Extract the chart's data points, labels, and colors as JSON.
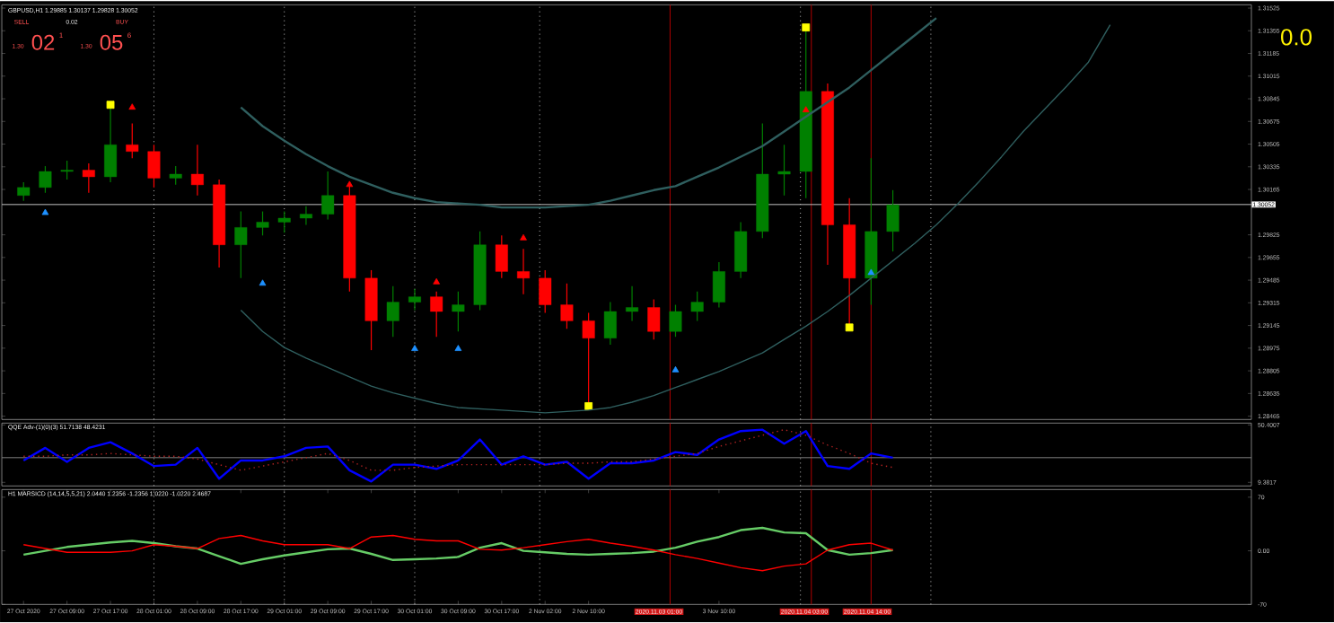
{
  "chart_data": [
    {
      "type": "candlestick",
      "title": "GBPUSD,H1 1.29885 1.30137 1.29828 1.30052",
      "categories": [
        null,
        null,
        null,
        null,
        null,
        null,
        null,
        null,
        null,
        null,
        null,
        null,
        null,
        null,
        null,
        null,
        null,
        null,
        null,
        null,
        null,
        null,
        null,
        null,
        null,
        null,
        null,
        null,
        null,
        null,
        null,
        null,
        null,
        null,
        null,
        null,
        null,
        null,
        null,
        null,
        null,
        null,
        null,
        null,
        null,
        null,
        null,
        null,
        null,
        null,
        null,
        null,
        null,
        null,
        null,
        null,
        null
      ],
      "ohlc": [
        [
          1.3012,
          1.3022,
          1.3008,
          1.3018
        ],
        [
          1.3018,
          1.3034,
          1.3014,
          1.303
        ],
        [
          1.303,
          1.3038,
          1.3024,
          1.3031
        ],
        [
          1.3031,
          1.3036,
          1.3014,
          1.3026
        ],
        [
          1.3026,
          1.308,
          1.3022,
          1.305
        ],
        [
          1.305,
          1.3066,
          1.304,
          1.3045
        ],
        [
          1.3045,
          1.305,
          1.3018,
          1.3025
        ],
        [
          1.3025,
          1.3034,
          1.302,
          1.3028
        ],
        [
          1.3028,
          1.305,
          1.3012,
          1.302
        ],
        [
          1.302,
          1.3024,
          1.2958,
          1.2975
        ],
        [
          1.2975,
          1.3,
          1.295,
          1.2988
        ],
        [
          1.2988,
          1.3,
          1.2982,
          1.2992
        ],
        [
          1.2992,
          1.3,
          1.2984,
          1.2995
        ],
        [
          1.2995,
          1.3004,
          1.299,
          1.2998
        ],
        [
          1.2998,
          1.303,
          1.2994,
          1.3012
        ],
        [
          1.3012,
          1.302,
          1.294,
          1.295
        ],
        [
          1.295,
          1.2956,
          1.2896,
          1.2918
        ],
        [
          1.2918,
          1.2944,
          1.2906,
          1.2932
        ],
        [
          1.2932,
          1.2942,
          1.2926,
          1.2936
        ],
        [
          1.2936,
          1.294,
          1.2906,
          1.2925
        ],
        [
          1.2925,
          1.294,
          1.291,
          1.293
        ],
        [
          1.293,
          1.2985,
          1.2926,
          1.2975
        ],
        [
          1.2975,
          1.2982,
          1.295,
          1.2955
        ],
        [
          1.2955,
          1.2972,
          1.2938,
          1.295
        ],
        [
          1.295,
          1.2956,
          1.2924,
          1.293
        ],
        [
          1.293,
          1.2946,
          1.2912,
          1.2918
        ],
        [
          1.2918,
          1.2924,
          1.2854,
          1.2905
        ],
        [
          1.2905,
          1.2932,
          1.29,
          1.2925
        ],
        [
          1.2925,
          1.2944,
          1.2918,
          1.2928
        ],
        [
          1.2928,
          1.2934,
          1.2904,
          1.291
        ],
        [
          1.291,
          1.293,
          1.2906,
          1.2925
        ],
        [
          1.2925,
          1.294,
          1.2918,
          1.2932
        ],
        [
          1.2932,
          1.2962,
          1.2928,
          1.2955
        ],
        [
          1.2955,
          1.2992,
          1.295,
          1.2985
        ],
        [
          1.2985,
          1.3066,
          1.298,
          1.3028
        ],
        [
          1.3028,
          1.305,
          1.3012,
          1.303
        ],
        [
          1.303,
          1.3138,
          1.301,
          1.309
        ],
        [
          1.309,
          1.3096,
          1.296,
          1.299
        ],
        [
          1.299,
          1.301,
          1.2913,
          1.295
        ],
        [
          1.295,
          1.304,
          1.293,
          1.2985
        ],
        [
          1.2985,
          1.3016,
          1.297,
          1.3005
        ],
        null,
        null,
        null,
        null,
        null,
        null,
        null,
        null,
        null,
        null,
        null,
        null,
        null,
        null,
        null,
        null
      ],
      "colors": [
        "#008000",
        "#008000",
        "#008000",
        "#ff0000",
        "#008000",
        "#ff0000",
        "#ff0000",
        "#008000",
        "#ff0000",
        "#ff0000",
        "#008000",
        "#008000",
        "#008000",
        "#008000",
        "#008000",
        "#ff0000",
        "#ff0000",
        "#008000",
        "#008000",
        "#ff0000",
        "#008000",
        "#008000",
        "#ff0000",
        "#ff0000",
        "#ff0000",
        "#ff0000",
        "#ff0000",
        "#008000",
        "#008000",
        "#ff0000",
        "#008000",
        "#008000",
        "#008000",
        "#008000",
        "#008000",
        "#008000",
        "#008000",
        "#ff0000",
        "#ff0000",
        "#008000",
        "#008000",
        null,
        null,
        null,
        null,
        null,
        null,
        null,
        null,
        null,
        null,
        null,
        null,
        null,
        null,
        null,
        null
      ],
      "series": [
        {
          "type": "scatter",
          "marker": "triangle",
          "color": "#1e90ff",
          "values": [
            null,
            1.2999,
            null,
            null,
            null,
            null,
            null,
            null,
            null,
            null,
            null,
            1.2946,
            null,
            null,
            null,
            null,
            null,
            null,
            1.2897,
            null,
            1.2897,
            null,
            null,
            null,
            null,
            null,
            null,
            null,
            null,
            null,
            1.2881,
            null,
            null,
            null,
            null,
            null,
            null,
            null,
            null,
            1.2954,
            null,
            null,
            null,
            null,
            null,
            null,
            null,
            null,
            null,
            null,
            null,
            null,
            null,
            null,
            null,
            null,
            null
          ]
        },
        {
          "type": "scatter",
          "marker": "triangle",
          "color": "#ff0000",
          "values": [
            null,
            null,
            null,
            null,
            null,
            1.3078,
            null,
            null,
            null,
            null,
            null,
            null,
            null,
            null,
            null,
            1.302,
            null,
            null,
            null,
            1.2947,
            null,
            null,
            null,
            1.298,
            null,
            null,
            null,
            null,
            null,
            null,
            null,
            null,
            null,
            null,
            null,
            null,
            1.3076,
            null,
            null,
            null,
            null,
            null,
            null,
            null,
            null,
            null,
            null,
            null,
            null,
            null,
            null,
            null,
            null,
            null,
            null,
            null,
            null
          ]
        },
        {
          "type": "scatter",
          "marker": "square",
          "color": "#ffff00",
          "values": [
            null,
            null,
            null,
            null,
            1.308,
            null,
            null,
            null,
            null,
            null,
            null,
            null,
            null,
            null,
            null,
            null,
            null,
            null,
            null,
            null,
            null,
            null,
            null,
            null,
            null,
            null,
            1.2854,
            null,
            null,
            null,
            null,
            null,
            null,
            null,
            null,
            null,
            1.3138,
            null,
            1.2913,
            null,
            null,
            null,
            null,
            null,
            null,
            null,
            null,
            null,
            null,
            null,
            null,
            null,
            null,
            null,
            null,
            null,
            null
          ]
        },
        {
          "type": "line",
          "color": "#2f5f5f",
          "values": [
            null,
            null,
            null,
            null,
            null,
            null,
            null,
            null,
            null,
            null,
            1.3078,
            1.3064,
            1.3053,
            1.3043,
            1.3034,
            1.3026,
            1.302,
            1.3014,
            1.301,
            1.3007,
            1.3006,
            1.3005,
            1.3003,
            1.3003,
            1.3003,
            1.3004,
            1.3005,
            1.3008,
            1.3012,
            1.3016,
            1.3019,
            1.3026,
            1.3033,
            1.3041,
            1.3049,
            1.306,
            1.3071,
            1.3082,
            1.3093,
            1.3106,
            1.3119,
            1.3132,
            1.3145,
            null,
            null,
            null,
            null,
            null,
            null,
            null,
            null,
            null,
            null,
            null,
            null,
            null,
            null
          ]
        },
        {
          "type": "line",
          "color": "#2f5f5f",
          "values": [
            null,
            null,
            null,
            null,
            null,
            null,
            null,
            null,
            null,
            null,
            1.2926,
            1.291,
            1.2898,
            1.289,
            1.2883,
            1.2876,
            1.2869,
            1.2864,
            1.286,
            1.2856,
            1.2853,
            1.2852,
            1.2851,
            1.285,
            1.2849,
            1.285,
            1.2851,
            1.2853,
            1.2857,
            1.2862,
            1.2868,
            1.2874,
            1.288,
            1.2887,
            1.2894,
            1.2904,
            1.2914,
            1.2925,
            1.2937,
            1.295,
            1.2963,
            1.2976,
            1.299,
            1.3006,
            1.3023,
            1.3041,
            1.306,
            1.3077,
            1.3094,
            1.3112,
            1.314,
            null,
            null,
            null,
            null,
            null,
            null
          ]
        }
      ],
      "ylim": [
        1.2844,
        1.3155
      ],
      "grid": "x",
      "yticks": [
        1.31525,
        1.31355,
        1.31185,
        1.31015,
        1.30845,
        1.30675,
        1.30505,
        1.30335,
        1.30165,
        1.29825,
        1.29655,
        1.29485,
        1.29315,
        1.29145,
        1.28975,
        1.28805,
        1.28635,
        1.28465
      ],
      "tick_labels": "y",
      "ref_lines": [
        {
          "axis": "y",
          "value": 1.30052,
          "label": "1.30052",
          "color": "#c0c0c0"
        }
      ],
      "annotations": [
        "SELL",
        "0.02",
        "BUY",
        "1.30",
        "02",
        "1",
        "1.30",
        "05",
        "6",
        "0.0"
      ]
    },
    {
      "type": "line",
      "title": "QQE Adv-(1)(0)(3) 51.7138 48.4231",
      "categories": [
        null,
        null,
        null,
        null,
        null,
        null,
        null,
        null,
        null,
        null,
        null,
        null,
        null,
        null,
        null,
        null,
        null,
        null,
        null,
        null,
        null,
        null,
        null,
        null,
        null,
        null,
        null,
        null,
        null,
        null,
        null,
        null,
        null,
        null,
        null,
        null,
        null,
        null,
        null,
        null,
        null,
        null,
        null,
        null,
        null,
        null,
        null,
        null,
        null,
        null,
        null,
        null,
        null,
        null,
        null,
        null,
        null
      ],
      "series": [
        {
          "color": "#0000ff",
          "values": [
            25,
            34,
            24,
            34,
            38,
            30,
            21,
            22,
            34,
            12,
            25,
            25,
            28,
            34,
            35,
            18,
            10,
            22,
            22,
            19,
            25,
            40,
            22,
            28,
            22,
            24,
            12,
            23,
            23,
            25,
            31,
            29,
            40,
            46,
            47,
            37,
            46,
            21,
            19,
            30,
            27,
            null,
            null,
            null,
            null,
            null,
            null,
            null,
            null,
            null,
            null,
            null,
            null,
            null,
            null,
            null,
            null
          ]
        },
        {
          "color": "#b22222",
          "line_style": "dotted",
          "values": [
            28,
            28,
            29,
            29,
            30,
            29,
            28,
            28,
            26,
            22,
            18,
            21,
            24,
            27,
            30,
            25,
            18,
            18,
            20,
            21,
            22,
            22,
            22,
            22,
            22,
            23,
            23,
            24,
            24,
            26,
            28,
            30,
            35,
            39,
            43,
            47,
            43,
            36,
            30,
            23,
            20,
            null,
            null,
            null,
            null,
            null,
            null,
            null,
            null,
            null,
            null,
            null,
            null,
            null,
            null,
            null,
            null
          ]
        }
      ],
      "ylim": [
        6.8,
        51.7
      ],
      "yticks": [
        50.4007,
        9.3817
      ],
      "tick_labels": "y",
      "grid": "x",
      "ref_lines": [
        {
          "axis": "y",
          "value": 27,
          "color": "#808080"
        }
      ]
    },
    {
      "type": "line",
      "title": "H1 MARSICD (14,14,5,5,21) 2.0440 1.2356 -1.2356 1.0220 -1.0220 2.4687",
      "categories": [
        "27 Oct 2020",
        null,
        "27 Oct 09:00",
        null,
        "27 Oct 17:00",
        null,
        "28 Oct 01:00",
        null,
        "28 Oct 09:00",
        null,
        "28 Oct 17:00",
        null,
        "29 Oct 01:00",
        null,
        "29 Oct 09:00",
        null,
        "29 Oct 17:00",
        null,
        "30 Oct 01:00",
        null,
        "30 Oct 09:00",
        null,
        "30 Oct 17:00",
        null,
        "2 Nov 02:00",
        null,
        "2 Nov 10:00",
        null,
        null,
        null,
        null,
        null,
        "3 Nov 10:00",
        null,
        null,
        null,
        null,
        null,
        null,
        null,
        null,
        null,
        null,
        null,
        null,
        null,
        null,
        null,
        null,
        null,
        null,
        null,
        null,
        null,
        null,
        null,
        null
      ],
      "series": [
        {
          "color": "#66cc66",
          "values": [
            -5,
            0,
            5,
            8,
            11,
            13,
            10,
            6,
            3,
            -7,
            -17,
            -11,
            -6,
            -2,
            2,
            3,
            -4,
            -12,
            -11,
            -10,
            -8,
            4,
            10,
            0,
            -2,
            -4,
            -5,
            -4,
            -3,
            -1,
            4,
            12,
            18,
            27,
            30,
            24,
            23,
            1,
            -5,
            -3,
            1,
            null,
            null,
            null,
            null,
            null,
            null,
            null,
            null,
            null,
            null,
            null,
            null,
            null,
            null,
            null,
            null
          ]
        },
        {
          "color": "#ff0000",
          "values": [
            8,
            3,
            -2,
            -2,
            -2,
            0,
            8,
            6,
            3,
            16,
            20,
            13,
            8,
            8,
            8,
            3,
            18,
            20,
            15,
            13,
            13,
            2,
            1,
            4,
            8,
            12,
            15,
            10,
            6,
            1,
            -5,
            -10,
            -16,
            -22,
            -26,
            -20,
            -17,
            1,
            8,
            10,
            1,
            null,
            null,
            null,
            null,
            null,
            null,
            null,
            null,
            null,
            null,
            null,
            null,
            null,
            null,
            null,
            null
          ]
        }
      ],
      "ylim": [
        -70,
        80
      ],
      "grid": "x",
      "yticks": [
        {
          "value": 70,
          "label": "70"
        },
        {
          "value": 0,
          "label": "0.00"
        },
        {
          "value": -70,
          "label": "-70"
        }
      ],
      "annotations": [
        "2020.11.03 01:00",
        "2020.11.04 03:00",
        "2020.11.04 14:00"
      ]
    }
  ]
}
